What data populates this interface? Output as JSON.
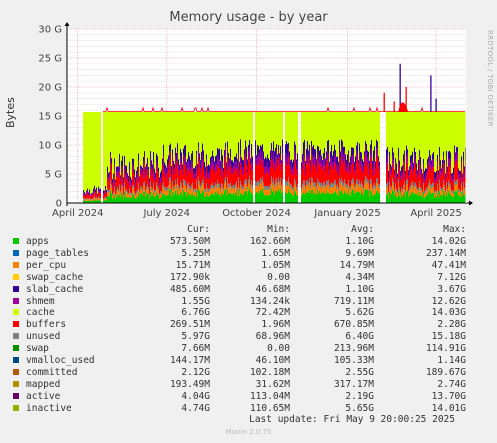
{
  "chart_data": {
    "type": "area",
    "title": "Memory usage - by year",
    "ylabel": "Bytes",
    "side_label": "RRDTOOL / TOBI OETIKER",
    "ylim": [
      0,
      30
    ],
    "yticks": [
      "0",
      "5 G",
      "10 G",
      "15 G",
      "20 G",
      "25 G",
      "30 G"
    ],
    "xticks": [
      "April 2024",
      "July 2024",
      "October 2024",
      "January 2025",
      "April 2025"
    ],
    "grid": true,
    "approx_series_gb": {
      "unused_top": 15.7,
      "typical_total_used": 8,
      "spike_peak_max": 24
    },
    "series": [
      {
        "name": "apps",
        "color": "#00cc00",
        "cur": "573.50M",
        "min": "162.66M",
        "avg": "1.10G",
        "max": "14.02G"
      },
      {
        "name": "page_tables",
        "color": "#0066b3",
        "cur": "5.25M",
        "min": "1.65M",
        "avg": "9.69M",
        "max": "237.14M"
      },
      {
        "name": "per_cpu",
        "color": "#ff8000",
        "cur": "15.71M",
        "min": "1.05M",
        "avg": "14.79M",
        "max": "47.41M"
      },
      {
        "name": "swap_cache",
        "color": "#ffcc00",
        "cur": "172.90k",
        "min": "0.00",
        "avg": "4.34M",
        "max": "7.12G"
      },
      {
        "name": "slab_cache",
        "color": "#330099",
        "cur": "485.60M",
        "min": "46.68M",
        "avg": "1.10G",
        "max": "3.67G"
      },
      {
        "name": "shmem",
        "color": "#990099",
        "cur": "1.55G",
        "min": "134.24k",
        "avg": "719.11M",
        "max": "12.62G"
      },
      {
        "name": "cache",
        "color": "#ccff00",
        "cur": "6.76G",
        "min": "72.42M",
        "avg": "5.62G",
        "max": "14.03G"
      },
      {
        "name": "buffers",
        "color": "#ff0000",
        "cur": "269.51M",
        "min": "1.96M",
        "avg": "670.85M",
        "max": "2.28G"
      },
      {
        "name": "unused",
        "color": "#808080",
        "cur": "5.97G",
        "min": "68.96M",
        "avg": "6.40G",
        "max": "15.18G"
      },
      {
        "name": "swap",
        "color": "#008f00",
        "cur": "7.66M",
        "min": "0.00",
        "avg": "213.96M",
        "max": "114.91G"
      },
      {
        "name": "vmalloc_used",
        "color": "#00487d",
        "cur": "144.17M",
        "min": "46.10M",
        "avg": "105.33M",
        "max": "1.14G"
      },
      {
        "name": "committed",
        "color": "#b35a00",
        "cur": "2.12G",
        "min": "102.18M",
        "avg": "2.55G",
        "max": "189.67G"
      },
      {
        "name": "mapped",
        "color": "#b38f00",
        "cur": "193.49M",
        "min": "31.62M",
        "avg": "317.17M",
        "max": "2.74G"
      },
      {
        "name": "active",
        "color": "#6b006b",
        "cur": "4.04G",
        "min": "113.04M",
        "avg": "2.19G",
        "max": "13.70G"
      },
      {
        "name": "inactive",
        "color": "#8fb300",
        "cur": "4.74G",
        "min": "110.65M",
        "avg": "5.65G",
        "max": "14.01G"
      }
    ]
  },
  "legend_headers": {
    "cur": "Cur:",
    "min": "Min:",
    "avg": "Avg:",
    "max": "Max:"
  },
  "last_update": "Last update: Fri May  9 20:00:25 2025",
  "footer": "Munin 2.0.75"
}
